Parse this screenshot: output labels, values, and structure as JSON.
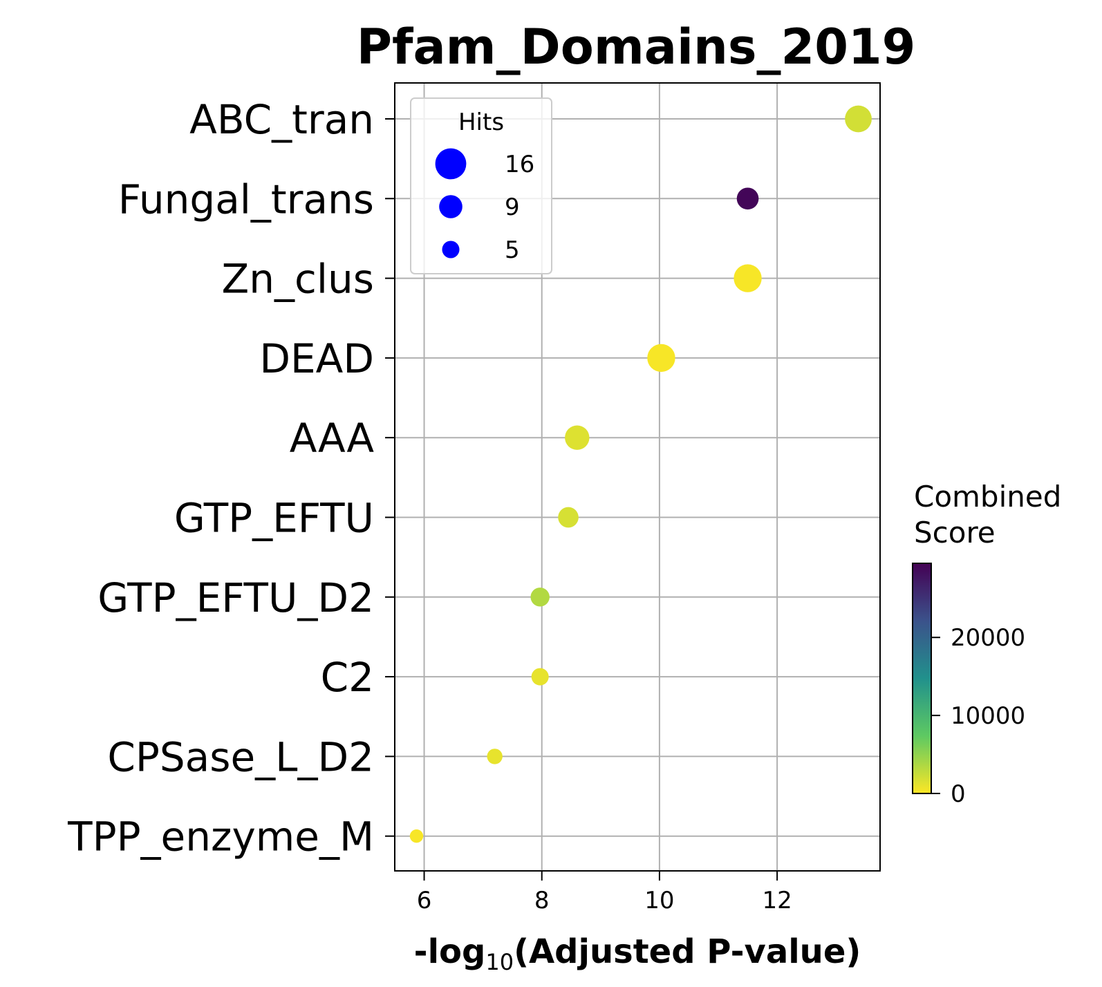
{
  "chart_data": {
    "type": "scatter",
    "title": "Pfam_Domains_2019",
    "xlabel_prefix": "-log",
    "xlabel_sub": "10",
    "xlabel_suffix": "(Adjusted P-value)",
    "xlim": [
      5.5,
      13.75
    ],
    "xticks": [
      "6",
      "8",
      "10",
      "12"
    ],
    "grid": true,
    "categories": [
      "ABC_tran",
      "Fungal_trans",
      "Zn_clus",
      "DEAD",
      "AAA",
      "GTP_EFTU",
      "GTP_EFTU_D2",
      "C2",
      "CPSase_L_D2",
      "TPP_enzyme_M"
    ],
    "points": [
      {
        "term": "ABC_tran",
        "x": 13.38,
        "hits": 12,
        "score": 2000
      },
      {
        "term": "Fungal_trans",
        "x": 11.5,
        "hits": 8,
        "score": 29000
      },
      {
        "term": "Zn_clus",
        "x": 11.5,
        "hits": 13,
        "score": 300
      },
      {
        "term": "DEAD",
        "x": 10.03,
        "hits": 13,
        "score": 300
      },
      {
        "term": "AAA",
        "x": 8.6,
        "hits": 10,
        "score": 1500
      },
      {
        "term": "GTP_EFTU",
        "x": 8.45,
        "hits": 7,
        "score": 1800
      },
      {
        "term": "GTP_EFTU_D2",
        "x": 7.97,
        "hits": 6,
        "score": 3500
      },
      {
        "term": "C2",
        "x": 7.97,
        "hits": 5,
        "score": 1000
      },
      {
        "term": "CPSase_L_D2",
        "x": 7.2,
        "hits": 4,
        "score": 1000
      },
      {
        "term": "TPP_enzyme_M",
        "x": 5.87,
        "hits": 3,
        "score": 300
      }
    ],
    "legend": {
      "title": "Hits",
      "position": "top-left",
      "color": "#0000ff",
      "entries": [
        {
          "label": "16",
          "hits": 16
        },
        {
          "label": "9",
          "hits": 9
        },
        {
          "label": "5",
          "hits": 5
        }
      ]
    },
    "colorbar": {
      "title_line1": "Combined",
      "title_line2": "Score",
      "colormap": "viridis_r",
      "range": [
        0,
        29500
      ],
      "ticks": [
        {
          "value": 0,
          "label": "0"
        },
        {
          "value": 10000,
          "label": "10000"
        },
        {
          "value": 20000,
          "label": "20000"
        }
      ]
    }
  }
}
